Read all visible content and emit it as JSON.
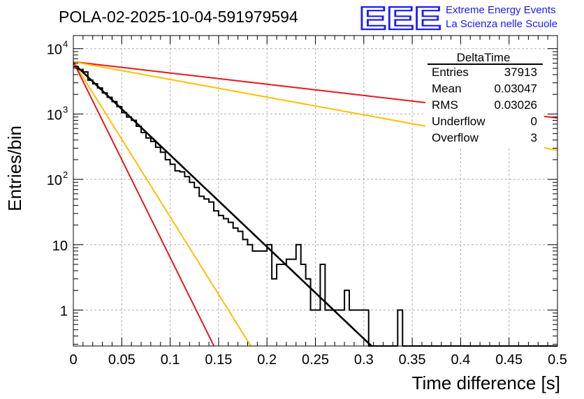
{
  "logo": {
    "mark": "EEE",
    "line1": "Extreme Energy Events",
    "line2": "La Scienza nelle Scuole",
    "color": "#1a1aff"
  },
  "stats_box": {
    "name": "DeltaTime",
    "rows": [
      {
        "label": "Entries",
        "value": "37913"
      },
      {
        "label": "Mean",
        "value": "0.03047"
      },
      {
        "label": "RMS",
        "value": "0.03026"
      },
      {
        "label": "Underflow",
        "value": "0"
      },
      {
        "label": "Overflow",
        "value": "3"
      }
    ]
  },
  "chart_data": {
    "type": "histogram",
    "title": "POLA-02-2025-10-04-591979594",
    "xlabel": "Time difference [s]",
    "ylabel": "Entries/bin",
    "xlim": [
      0,
      0.5
    ],
    "ylim_log10": [
      -0.55,
      4.2
    ],
    "yscale": "log",
    "grid": true,
    "x_ticks": [
      0,
      0.05,
      0.1,
      0.15,
      0.2,
      0.25,
      0.3,
      0.35,
      0.4,
      0.45,
      0.5
    ],
    "x_tick_labels": [
      "0",
      "0.05",
      "0.1",
      "0.15",
      "0.2",
      "0.25",
      "0.3",
      "0.35",
      "0.4",
      "0.45",
      "0.5"
    ],
    "y_ticks": [
      {
        "value": 1,
        "base": "1",
        "exp": ""
      },
      {
        "value": 10,
        "base": "10",
        "exp": ""
      },
      {
        "value": 100,
        "base": "10",
        "exp": "2"
      },
      {
        "value": 1000,
        "base": "10",
        "exp": "3"
      },
      {
        "value": 10000,
        "base": "10",
        "exp": "4"
      }
    ],
    "bin_width": 0.005,
    "bin_contents": [
      5300,
      4800,
      4400,
      3300,
      2900,
      2500,
      2100,
      1800,
      1550,
      1300,
      1050,
      900,
      800,
      650,
      520,
      430,
      380,
      310,
      260,
      200,
      170,
      135,
      130,
      110,
      90,
      75,
      55,
      50,
      45,
      33,
      28,
      25,
      22,
      18,
      16,
      12,
      10,
      8,
      8,
      8,
      10,
      3,
      5,
      5,
      6,
      6,
      10,
      5,
      3,
      1,
      1,
      5,
      1,
      1,
      1,
      1,
      2,
      1,
      1,
      1,
      1,
      0,
      0,
      0,
      0,
      0,
      0,
      1,
      0,
      0,
      0,
      0,
      0,
      0,
      0,
      0,
      0,
      0,
      0,
      0,
      0,
      0,
      0,
      0,
      0,
      0,
      0,
      0,
      0,
      0,
      0,
      0,
      0,
      0,
      0,
      0,
      0,
      0,
      0,
      0
    ],
    "fits": [
      {
        "name": "data fit",
        "color": "#000000",
        "A": 6000,
        "tau": 0.0309
      },
      {
        "name": "upper bound (slow)",
        "color": "#e41a1c",
        "A": 6300,
        "tau": 0.2526
      },
      {
        "name": "upper bound (fast)",
        "color": "#ffc000",
        "A": 6300,
        "tau": 0.1604
      },
      {
        "name": "lower bound (slow)",
        "color": "#ffc000",
        "A": 6300,
        "tau": 0.0183
      },
      {
        "name": "lower bound (fast)",
        "color": "#e41a1c",
        "A": 6300,
        "tau": 0.0145
      }
    ]
  }
}
